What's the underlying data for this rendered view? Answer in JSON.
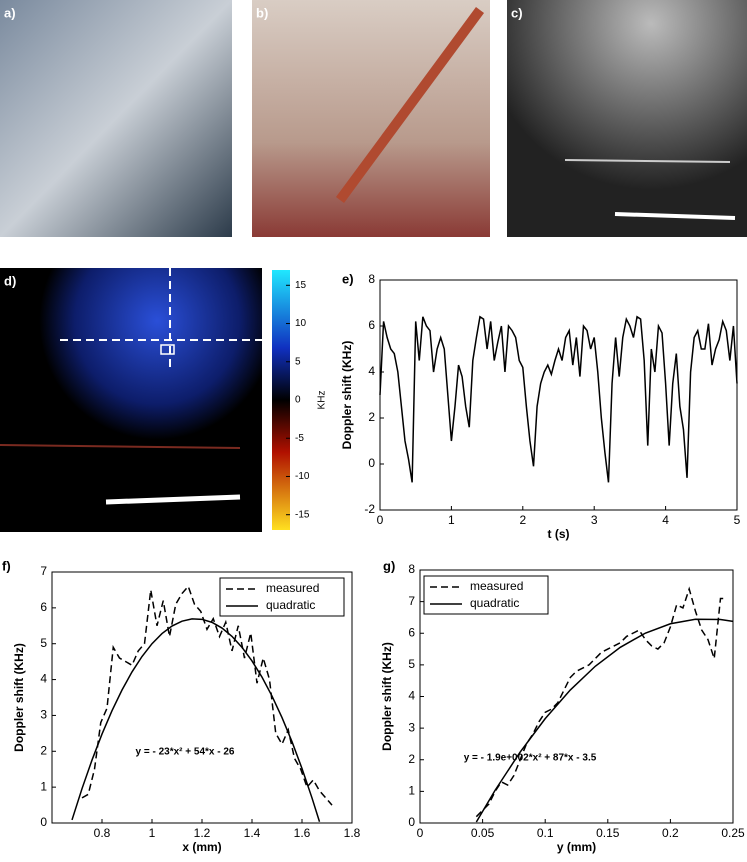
{
  "image_labels": [
    "a)",
    "b)",
    "c)",
    "d)"
  ],
  "colorbar": {
    "label": "KHz",
    "lim": [
      -17,
      17
    ],
    "ticks": [
      15,
      10,
      5,
      0,
      -5,
      -10,
      -15
    ]
  },
  "chart_data": [
    {
      "type": "line",
      "panel_label": "e)",
      "xlabel": "t (s)",
      "ylabel": "Doppler shift (KHz)",
      "xlim": [
        0,
        5
      ],
      "ylim": [
        -2,
        8
      ],
      "xticks": [
        0,
        1,
        2,
        3,
        4,
        5
      ],
      "yticks": [
        -2,
        0,
        2,
        4,
        6,
        8
      ],
      "color": "#000",
      "x": [
        0,
        0.05,
        0.1,
        0.15,
        0.2,
        0.25,
        0.3,
        0.35,
        0.4,
        0.45,
        0.5,
        0.55,
        0.6,
        0.65,
        0.7,
        0.75,
        0.8,
        0.85,
        0.9,
        0.95,
        1,
        1.05,
        1.1,
        1.15,
        1.2,
        1.25,
        1.3,
        1.35,
        1.4,
        1.45,
        1.5,
        1.55,
        1.6,
        1.65,
        1.7,
        1.75,
        1.8,
        1.85,
        1.9,
        1.95,
        2,
        2.05,
        2.1,
        2.15,
        2.2,
        2.25,
        2.3,
        2.35,
        2.4,
        2.45,
        2.5,
        2.55,
        2.6,
        2.65,
        2.7,
        2.75,
        2.8,
        2.85,
        2.9,
        2.95,
        3,
        3.05,
        3.1,
        3.15,
        3.2,
        3.25,
        3.3,
        3.35,
        3.4,
        3.45,
        3.5,
        3.55,
        3.6,
        3.65,
        3.7,
        3.75,
        3.8,
        3.85,
        3.9,
        3.95,
        4,
        4.05,
        4.1,
        4.15,
        4.2,
        4.25,
        4.3,
        4.35,
        4.4,
        4.45,
        4.5,
        4.55,
        4.6,
        4.65,
        4.7,
        4.75,
        4.8,
        4.85,
        4.9,
        4.95,
        5
      ],
      "values": [
        3,
        6.2,
        5.5,
        5,
        4.8,
        4,
        2.5,
        1,
        0.2,
        -0.8,
        6.2,
        4.5,
        6.4,
        6,
        5.8,
        4,
        5,
        5.5,
        5,
        3,
        1,
        2.5,
        4.3,
        3.8,
        2.5,
        1.6,
        4.5,
        5.5,
        6.4,
        6.3,
        5,
        6.2,
        4.5,
        5.3,
        6,
        4,
        6,
        5.8,
        5.5,
        4.5,
        4.2,
        2.5,
        1,
        -0.1,
        2.5,
        3.5,
        4,
        4.3,
        3.9,
        4.5,
        5,
        4.5,
        5.5,
        5.8,
        4.3,
        5.5,
        3.8,
        6,
        5.8,
        5,
        5.5,
        4,
        2,
        0.5,
        -0.8,
        3.5,
        5.5,
        3.8,
        5.5,
        6.3,
        6,
        5.5,
        6.4,
        6.3,
        4.5,
        0.8,
        5,
        4,
        6,
        5.7,
        3.5,
        0.8,
        3.5,
        4.8,
        2.5,
        1.5,
        -0.6,
        4,
        5.5,
        5.8,
        5,
        5,
        6.1,
        4.3,
        5,
        5.4,
        6.2,
        5.8,
        4.5,
        6,
        3.5
      ]
    },
    {
      "type": "line",
      "panel_label": "f)",
      "xlabel": "x (mm)",
      "ylabel": "Doppler shift (KHz)",
      "xlim": [
        0.6,
        1.8
      ],
      "ylim": [
        0,
        7
      ],
      "xticks": [
        0.8,
        1,
        1.2,
        1.4,
        1.6,
        1.8
      ],
      "yticks": [
        0,
        1,
        2,
        3,
        4,
        5,
        6,
        7
      ],
      "legend": "upper right",
      "annotation": "y = - 23*x² + 54*x - 26",
      "series": [
        {
          "name": "measured",
          "color": "#000",
          "dashed": true,
          "x": [
            0.72,
            0.745,
            0.77,
            0.795,
            0.82,
            0.845,
            0.87,
            0.895,
            0.92,
            0.945,
            0.97,
            0.995,
            1.02,
            1.045,
            1.07,
            1.095,
            1.12,
            1.145,
            1.17,
            1.195,
            1.22,
            1.245,
            1.27,
            1.295,
            1.32,
            1.345,
            1.37,
            1.395,
            1.42,
            1.445,
            1.47,
            1.495,
            1.52,
            1.545,
            1.57,
            1.595,
            1.62,
            1.645,
            1.67,
            1.695,
            1.72
          ],
          "values": [
            0.7,
            0.8,
            1.5,
            2.8,
            3.2,
            4.9,
            4.6,
            4.5,
            4.4,
            4.8,
            5,
            6.5,
            5.5,
            6.2,
            5.2,
            6.1,
            6.4,
            6.6,
            6.1,
            5.9,
            5.4,
            5.7,
            5.2,
            5.6,
            4.8,
            5.5,
            4.6,
            5.3,
            3.9,
            4.6,
            4,
            2.5,
            2.2,
            2.6,
            1.8,
            1.5,
            1,
            1.2,
            0.9,
            0.7,
            0.5
          ]
        },
        {
          "name": "quadratic",
          "color": "#000",
          "dashed": false,
          "x": [
            0.68,
            0.72,
            0.76,
            0.8,
            0.84,
            0.88,
            0.92,
            0.96,
            1,
            1.04,
            1.08,
            1.12,
            1.16,
            1.2,
            1.24,
            1.28,
            1.32,
            1.36,
            1.4,
            1.44,
            1.48,
            1.52,
            1.56,
            1.6,
            1.64,
            1.67
          ],
          "values": [
            0.085,
            0.957,
            1.755,
            2.48,
            3.131,
            3.709,
            4.213,
            4.643,
            5,
            5.283,
            5.493,
            5.629,
            5.691,
            5.68,
            5.595,
            5.437,
            5.205,
            4.899,
            4.52,
            4.067,
            3.541,
            2.941,
            2.267,
            1.52,
            0.699,
            0.035
          ]
        }
      ]
    },
    {
      "type": "line",
      "panel_label": "g)",
      "xlabel": "y (mm)",
      "ylabel": "Doppler shift (KHz)",
      "xlim": [
        0,
        0.25
      ],
      "ylim": [
        0,
        8
      ],
      "xticks": [
        0,
        0.05,
        0.1,
        0.15,
        0.2,
        0.25
      ],
      "yticks": [
        0,
        1,
        2,
        3,
        4,
        5,
        6,
        7,
        8
      ],
      "legend": "upper left",
      "annotation": "y = - 1.9e+002*x² + 87*x - 3.5",
      "series": [
        {
          "name": "measured",
          "color": "#000",
          "dashed": true,
          "x": [
            0.045,
            0.05,
            0.055,
            0.06,
            0.065,
            0.07,
            0.075,
            0.08,
            0.085,
            0.09,
            0.095,
            0.1,
            0.105,
            0.11,
            0.115,
            0.12,
            0.125,
            0.13,
            0.135,
            0.14,
            0.145,
            0.15,
            0.155,
            0.16,
            0.165,
            0.17,
            0.175,
            0.18,
            0.185,
            0.19,
            0.195,
            0.2,
            0.205,
            0.21,
            0.215,
            0.22,
            0.225,
            0.23,
            0.235,
            0.24,
            0.245
          ],
          "values": [
            0.2,
            0.4,
            0.6,
            1,
            1.3,
            1.2,
            1.5,
            2,
            2.5,
            2.8,
            3.2,
            3.5,
            3.6,
            3.8,
            4.2,
            4.6,
            4.8,
            4.9,
            5,
            5.2,
            5.4,
            5.5,
            5.6,
            5.7,
            5.9,
            6,
            6.1,
            5.8,
            5.6,
            5.5,
            5.7,
            6.2,
            6.9,
            6.8,
            7.4,
            6.7,
            6.1,
            5.8,
            5.2,
            7.1,
            7.1
          ]
        },
        {
          "name": "quadratic",
          "color": "#000",
          "dashed": false,
          "x": [
            0.045,
            0.06,
            0.08,
            0.1,
            0.12,
            0.14,
            0.16,
            0.18,
            0.2,
            0.22,
            0.24,
            0.25
          ],
          "values": [
            0.03,
            1.036,
            2.244,
            3.3,
            4.204,
            4.956,
            5.556,
            6.004,
            6.3,
            6.444,
            6.436,
            6.375
          ]
        }
      ]
    }
  ]
}
